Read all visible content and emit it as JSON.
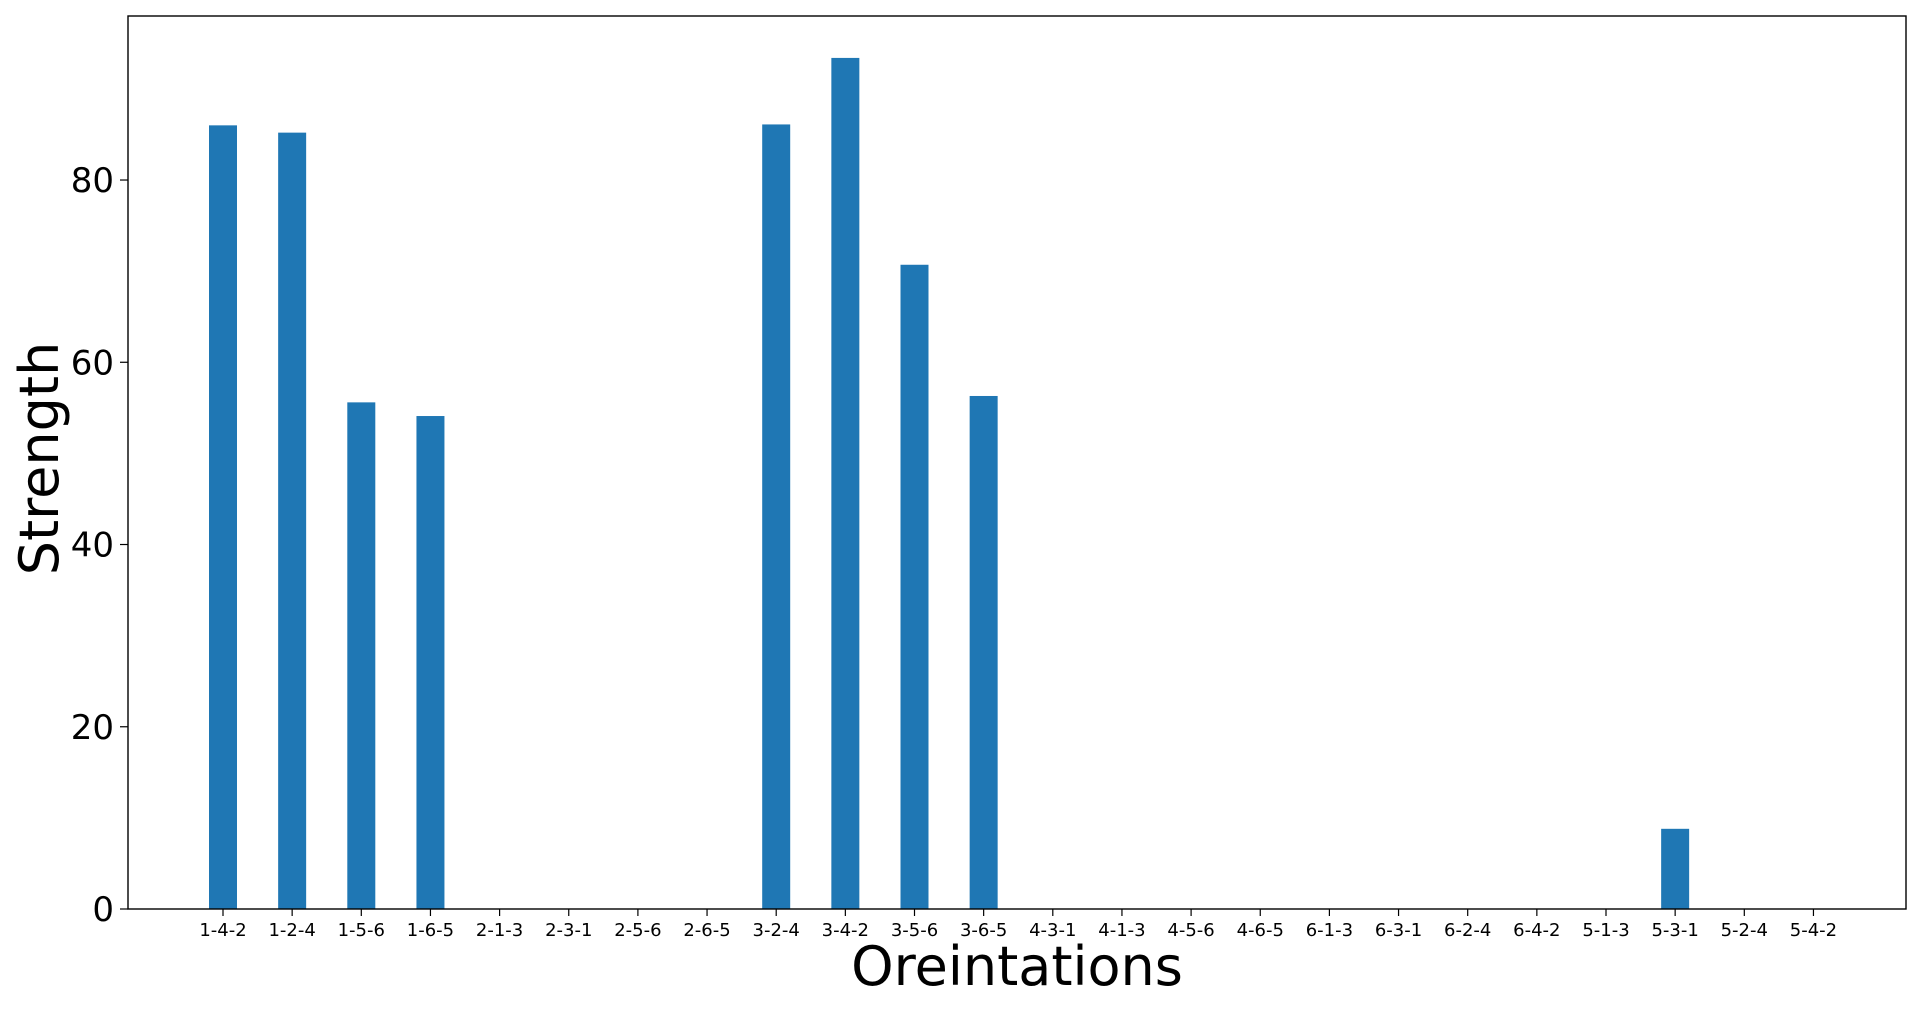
{
  "chart_data": {
    "type": "bar",
    "title": "",
    "xlabel": "Oreintations",
    "ylabel": "Strength",
    "ylim": [
      0,
      98
    ],
    "yticks": [
      0,
      20,
      40,
      60,
      80
    ],
    "grid": false,
    "legend": "none",
    "bar_color": "#1f77b4",
    "categories": [
      "1-4-2",
      "1-2-4",
      "1-5-6",
      "1-6-5",
      "2-1-3",
      "2-3-1",
      "2-5-6",
      "2-6-5",
      "3-2-4",
      "3-4-2",
      "3-5-6",
      "3-6-5",
      "4-3-1",
      "4-1-3",
      "4-5-6",
      "4-6-5",
      "6-1-3",
      "6-3-1",
      "6-2-4",
      "6-4-2",
      "5-1-3",
      "5-3-1",
      "5-2-4",
      "5-4-2"
    ],
    "values": [
      86.0,
      85.2,
      55.6,
      54.1,
      0,
      0,
      0,
      0,
      86.1,
      93.4,
      70.7,
      56.3,
      0,
      0,
      0,
      0,
      0,
      0,
      0,
      0,
      0,
      8.8,
      0,
      0
    ]
  }
}
